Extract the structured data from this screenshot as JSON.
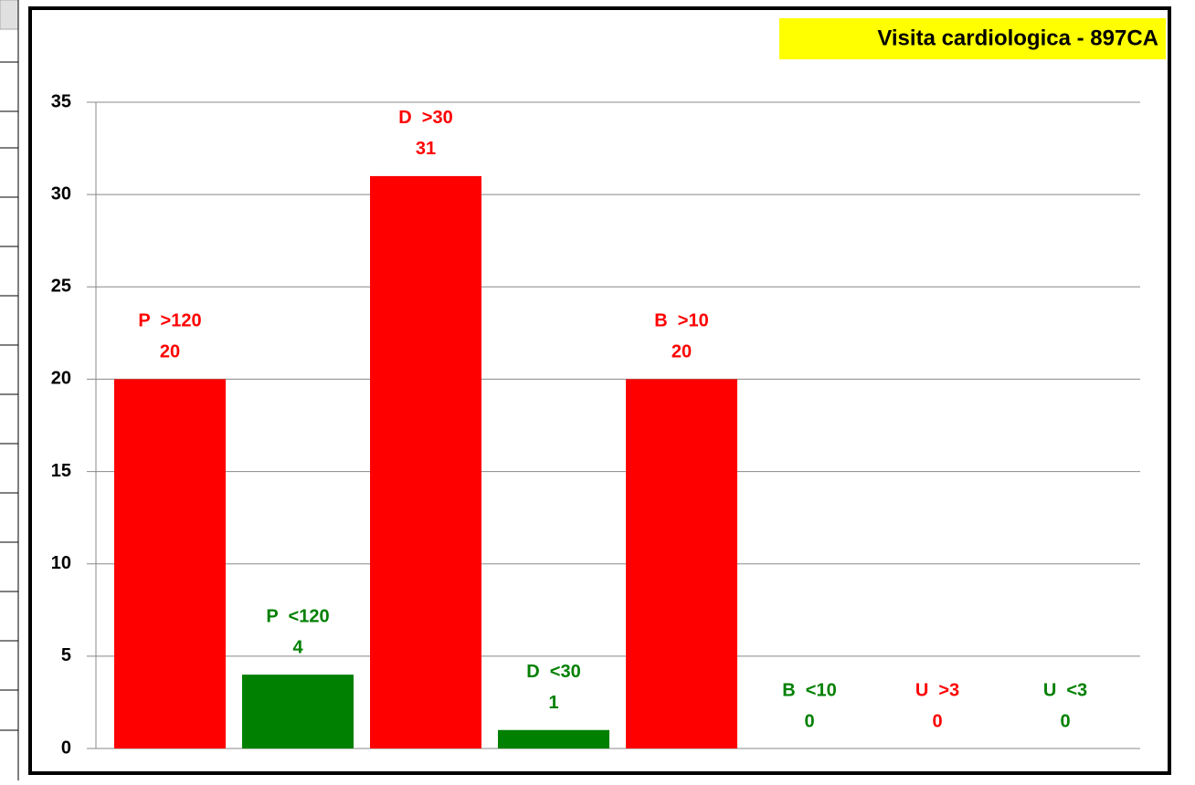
{
  "chart_data": {
    "type": "bar",
    "title": "Visita cardiologica - 897CA",
    "categories": [
      "P  >120",
      "P  <120",
      "D  >30",
      "D  <30",
      "B  >10",
      "B  <10",
      "U  >3",
      "U  <3"
    ],
    "values": [
      20,
      4,
      31,
      1,
      20,
      0,
      0,
      0
    ],
    "colors": [
      "#ff0000",
      "#008000",
      "#ff0000",
      "#008000",
      "#ff0000",
      "#008000",
      "#ff0000",
      "#008000"
    ],
    "ylim": [
      0,
      35
    ],
    "yticks": [
      0,
      5,
      10,
      15,
      20,
      25,
      30,
      35
    ],
    "grid": true
  }
}
